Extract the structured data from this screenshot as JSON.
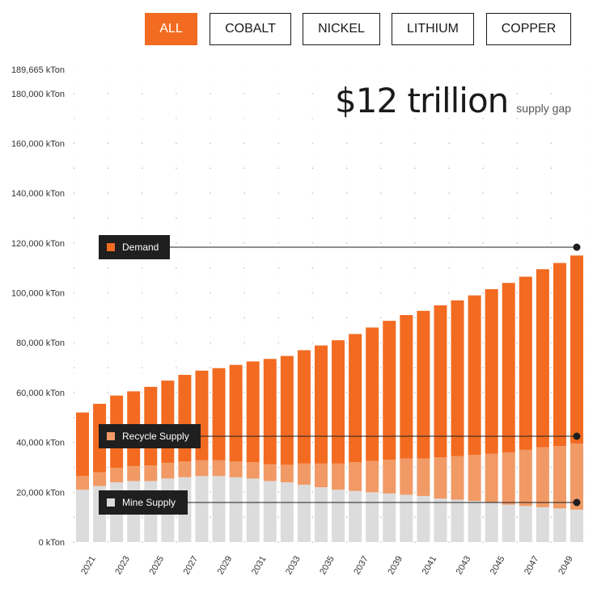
{
  "tabs": [
    {
      "label": "ALL",
      "active": true
    },
    {
      "label": "COBALT",
      "active": false
    },
    {
      "label": "NICKEL",
      "active": false
    },
    {
      "label": "LITHIUM",
      "active": false
    },
    {
      "label": "COPPER",
      "active": false
    }
  ],
  "headline": {
    "value": "$12 trillion",
    "caption": "supply gap"
  },
  "colors": {
    "demand": "#f26b21",
    "recycle": "#f19a66",
    "mine": "#dcdcdc",
    "active_tab": "#f26b21",
    "label_bg": "#1f1f1f"
  },
  "chart_data": {
    "type": "bar",
    "stacked": true,
    "categories": [
      "2021",
      "2022",
      "2023",
      "2024",
      "2025",
      "2026",
      "2027",
      "2028",
      "2029",
      "2030",
      "2031",
      "2032",
      "2033",
      "2034",
      "2035",
      "2036",
      "2037",
      "2038",
      "2039",
      "2040",
      "2041",
      "2042",
      "2043",
      "2044",
      "2045",
      "2046",
      "2047",
      "2048",
      "2049",
      "2050"
    ],
    "x_tick_labels": [
      "2021",
      "2023",
      "2025",
      "2027",
      "2029",
      "2031",
      "2033",
      "2035",
      "2037",
      "2039",
      "2041",
      "2043",
      "2045",
      "2047",
      "2049"
    ],
    "y_ticks": [
      0,
      20000,
      40000,
      60000,
      80000,
      100000,
      120000,
      140000,
      160000,
      180000,
      189665
    ],
    "y_tick_labels": [
      "0 kTon",
      "20,000 kTon",
      "40,000 kTon",
      "60,000 kTon",
      "80,000 kTon",
      "100,000 kTon",
      "120,000 kTon",
      "140,000 kTon",
      "160,000 kTon",
      "180,000 kTon",
      "189,665 kTon"
    ],
    "ylim": [
      0,
      189665
    ],
    "grid": "dotted",
    "series": [
      {
        "name": "Mine Supply",
        "key": "mine",
        "values": [
          21000,
          22500,
          24000,
          24500,
          24500,
          25500,
          26000,
          26500,
          26500,
          26000,
          25500,
          24500,
          24000,
          23000,
          22000,
          21000,
          20500,
          20000,
          19500,
          19000,
          18500,
          17500,
          17000,
          16500,
          16000,
          15000,
          14500,
          14000,
          13500,
          13000
        ]
      },
      {
        "name": "Recycle Supply",
        "key": "recycle",
        "values": [
          5500,
          5500,
          5800,
          6000,
          6300,
          6300,
          6300,
          6300,
          6300,
          6300,
          6500,
          6700,
          7000,
          8500,
          9500,
          10500,
          11500,
          12500,
          13500,
          14500,
          15000,
          16500,
          17500,
          18500,
          19500,
          21000,
          22500,
          24000,
          25000,
          26500
        ]
      },
      {
        "name": "Demand",
        "key": "demand",
        "values": [
          25500,
          27500,
          29000,
          30000,
          31500,
          33000,
          34800,
          36000,
          37000,
          38800,
          40500,
          42300,
          43700,
          45500,
          47400,
          49500,
          51500,
          53600,
          55800,
          57600,
          59300,
          61000,
          62500,
          64000,
          66000,
          68000,
          69500,
          71500,
          73500,
          75500
        ]
      }
    ],
    "totals": [
      52000,
      55500,
      58800,
      60500,
      62300,
      64800,
      67100,
      68800,
      69800,
      71100,
      72500,
      73500,
      74700,
      77000,
      78900,
      81000,
      83500,
      86100,
      88800,
      91100,
      92800,
      95000,
      97000,
      99000,
      101500,
      104000,
      106500,
      109500,
      112000,
      115000
    ],
    "legend_labels": [
      {
        "label": "Demand",
        "key": "demand"
      },
      {
        "label": "Recycle Supply",
        "key": "recycle"
      },
      {
        "label": "Mine Supply",
        "key": "mine"
      }
    ]
  }
}
